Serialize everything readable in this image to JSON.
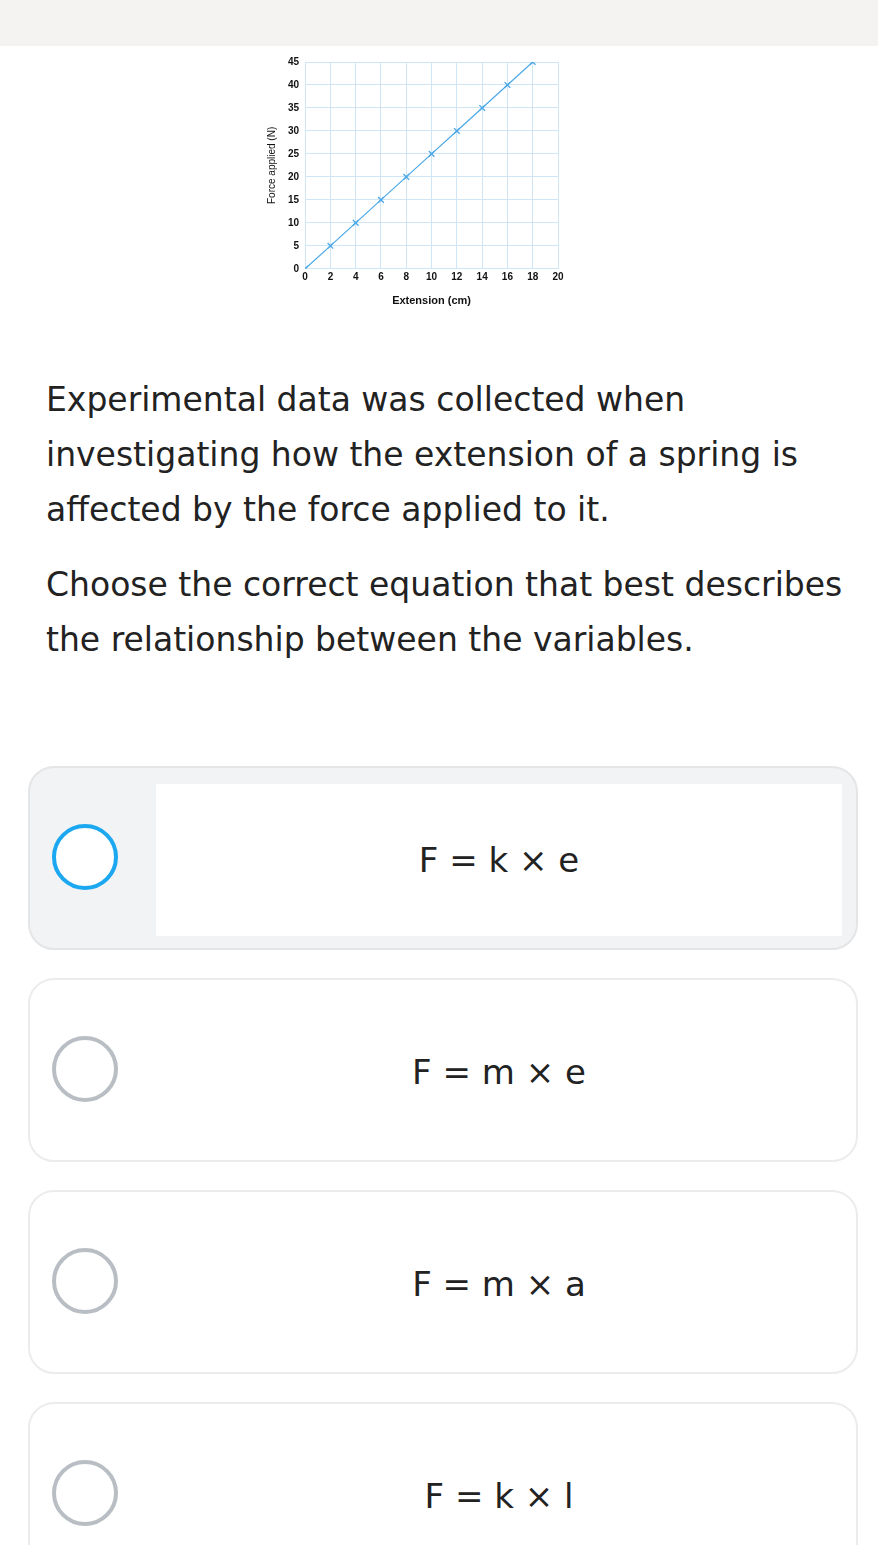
{
  "chart_data": {
    "type": "scatter",
    "x_label": "Extension (cm)",
    "y_label": "Force applied (N)",
    "x": [
      0,
      2,
      4,
      6,
      8,
      10,
      12,
      14,
      16,
      18
    ],
    "values": [
      0,
      5,
      10,
      15,
      20,
      25,
      30,
      35,
      40,
      45
    ],
    "color": "#4aa8e8",
    "marker": "x",
    "line_style": "solid",
    "xlim": [
      0,
      20
    ],
    "xticks": [
      0,
      2,
      4,
      6,
      8,
      10,
      12,
      14,
      16,
      18,
      20
    ],
    "ylim": [
      0,
      45
    ],
    "yticks": [
      0,
      5,
      10,
      15,
      20,
      25,
      30,
      35,
      40,
      45
    ],
    "grid": true
  },
  "question": {
    "paragraphs": [
      "Experimental data was collected when investigating how the extension of a spring is affected by the force applied to it.",
      "Choose the correct equation that best describes the relationship between the variables."
    ]
  },
  "options": [
    {
      "text": "F = k × e",
      "highlighted": true
    },
    {
      "text": "F = m × e",
      "highlighted": false
    },
    {
      "text": "F = m × a",
      "highlighted": false
    },
    {
      "text": "F = k × l",
      "highlighted": false
    }
  ]
}
